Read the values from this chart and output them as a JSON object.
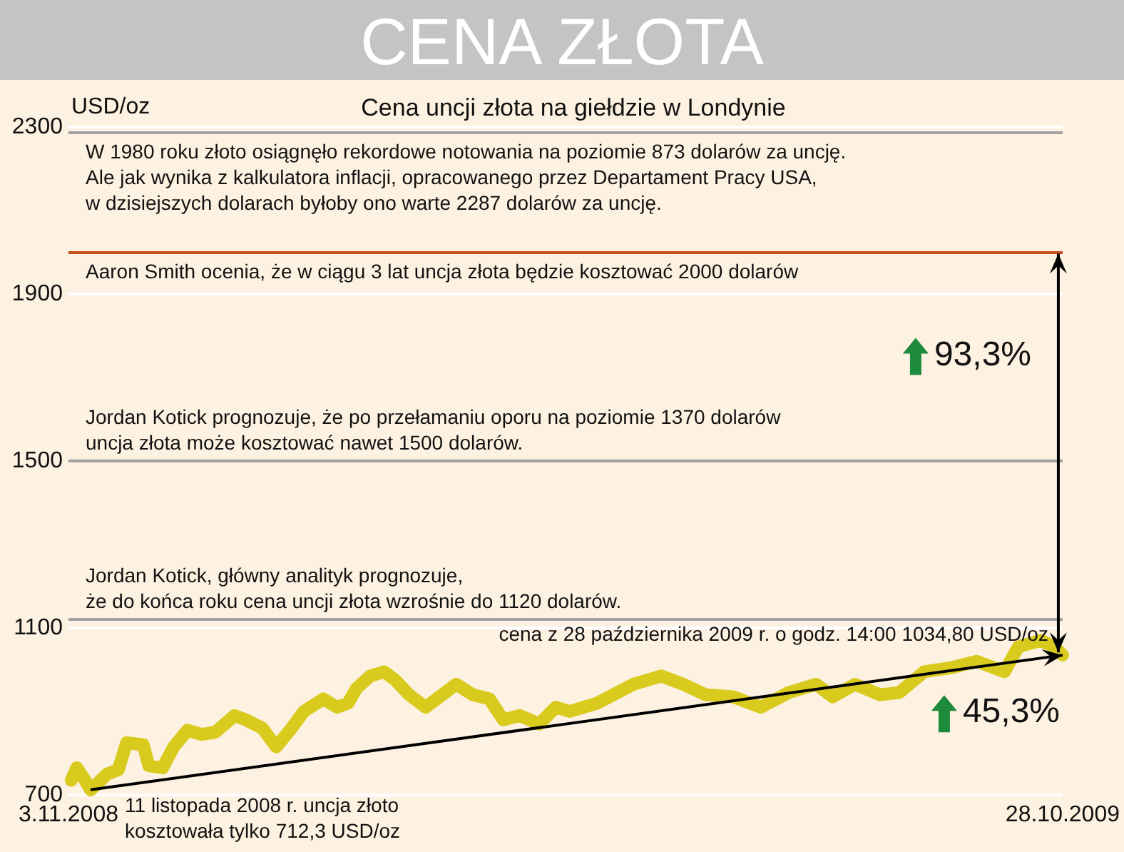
{
  "chart_data": {
    "type": "line",
    "title": "CENA ZŁOTA",
    "subtitle": "Cena uncji złota na giełdzie w Londynie",
    "ylabel": "USD/oz",
    "x": [
      "2008-11-04",
      "2008-11-06",
      "2008-11-09",
      "2008-11-11",
      "2008-11-17",
      "2008-11-21",
      "2008-11-24",
      "2008-11-30",
      "2008-12-02",
      "2008-12-07",
      "2008-12-11",
      "2008-12-16",
      "2008-12-21",
      "2008-12-26",
      "2009-01-02",
      "2009-01-06",
      "2009-01-12",
      "2009-01-17",
      "2009-01-22",
      "2009-01-27",
      "2009-02-03",
      "2009-02-08",
      "2009-02-12",
      "2009-02-15",
      "2009-02-20",
      "2009-02-25",
      "2009-03-01",
      "2009-03-06",
      "2009-03-12",
      "2009-03-17",
      "2009-03-23",
      "2009-03-29",
      "2009-04-04",
      "2009-04-09",
      "2009-04-15",
      "2009-04-22",
      "2009-04-28",
      "2009-05-03",
      "2009-05-13",
      "2009-05-26",
      "2009-06-05",
      "2009-06-13",
      "2009-06-21",
      "2009-07-01",
      "2009-07-11",
      "2009-07-21",
      "2009-07-31",
      "2009-08-06",
      "2009-08-14",
      "2009-08-23",
      "2009-08-30",
      "2009-09-08",
      "2009-09-18",
      "2009-09-27",
      "2009-10-07",
      "2009-10-12",
      "2009-10-20",
      "2009-10-25",
      "2009-10-28"
    ],
    "series": [
      {
        "color": "#d8cb1e",
        "values": [
          735,
          765,
          735,
          712,
          750,
          760,
          825,
          820,
          770,
          765,
          815,
          855,
          845,
          850,
          890,
          880,
          860,
          815,
          855,
          900,
          930,
          910,
          920,
          955,
          985,
          995,
          975,
          940,
          910,
          935,
          965,
          940,
          930,
          880,
          890,
          870,
          910,
          900,
          920,
          965,
          985,
          965,
          940,
          935,
          910,
          945,
          965,
          935,
          965,
          940,
          945,
          995,
          1005,
          1020,
          995,
          1055,
          1070,
          1055,
          1035
        ]
      }
    ],
    "xlim": [
      "2008-11-03",
      "2009-10-28"
    ],
    "xticks": [
      {
        "value": "2008-11-03",
        "label": "3.11.2008"
      },
      {
        "value": "2009-10-28",
        "label": "28.10.2009"
      }
    ],
    "ylim": [
      700,
      2300
    ],
    "yticks": [
      700,
      1100,
      1500,
      1900,
      2300
    ],
    "grid": "y",
    "line_style": "solid",
    "ref_lines": [
      {
        "axis": "y",
        "value": 2287,
        "label": "W 1980 roku złoto osiągnęło rekordowe notowania na poziomie 873 dolarów za uncję.\nAle jak wynika z kalkulatora inflacji, opracowanego przez Departament Pracy USA,\nw dzisiejszych dolarach byłoby ono warte 2287 dolarów za uncję.",
        "color": "#a0a0a0"
      },
      {
        "axis": "y",
        "value": 2000,
        "label": "Aaron Smith ocenia, że w ciągu 3 lat uncja złota będzie kosztować 2000 dolarów",
        "color": "#c8501e"
      },
      {
        "axis": "y",
        "value": 1500,
        "label": "Jordan Kotick prognozuje, że po przełamaniu oporu na poziomie 1370 dolarów\nuncja złota może kosztować nawet 1500 dolarów.",
        "color": "#a0a0a0"
      },
      {
        "axis": "y",
        "value": 1120,
        "label": "Jordan Kotick, główny analityk prognozuje,\nże do końca roku cena uncji złota wzrośnie do 1120 dolarów.",
        "color": "#a0a0a0"
      }
    ],
    "annotations": [
      {
        "text": "11 listopada 2008 r. uncja złoto\nkosztowała tylko 712,3 USD/oz",
        "x": "2008-11-11",
        "y": 712.3
      },
      {
        "text": "cena z 28 października 2009 r. o godz. 14:00 1034,80 USD/oz",
        "x": "2009-10-28",
        "y": 1034.8
      },
      "93,3%",
      "45,3%"
    ]
  }
}
